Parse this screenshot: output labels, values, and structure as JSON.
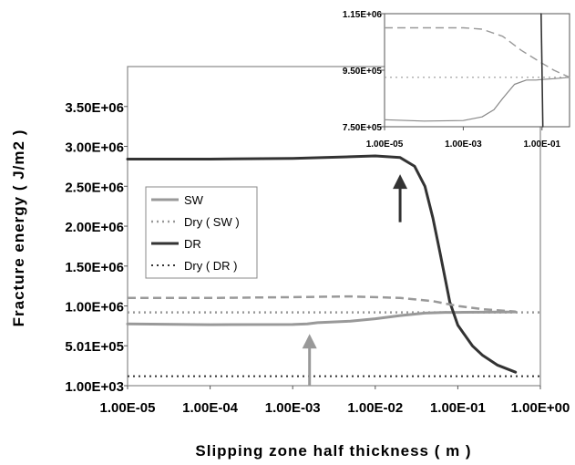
{
  "chart_data": [
    {
      "id": "main",
      "type": "line",
      "xlabel": "Slipping zone half thickness ( m )",
      "ylabel": "Fracture energy ( J/m2 )",
      "x_scale": "log",
      "xlim": [
        1e-05,
        1
      ],
      "ylim": [
        1000,
        4000000
      ],
      "x_tick_values": [
        1e-05,
        0.0001,
        0.001,
        0.01,
        0.1,
        1
      ],
      "x_tick_labels": [
        "1.00E-05",
        "1.00E-04",
        "1.00E-03",
        "1.00E-02",
        "1.00E-01",
        "1.00E+00"
      ],
      "y_tick_values": [
        1000,
        501000,
        1000000,
        1500000,
        2000000,
        2500000,
        3000000,
        3500000
      ],
      "y_tick_labels": [
        "1.00E+03",
        "5.01E+05",
        "1.00E+06",
        "1.50E+06",
        "2.00E+06",
        "2.50E+06",
        "3.00E+06",
        "3.50E+06"
      ],
      "grid": false,
      "legend_placement": "left-middle",
      "series": [
        {
          "name": "SW",
          "color": "#999999",
          "dash": "solid",
          "width": 3,
          "x": [
            1e-05,
            0.0001,
            0.001,
            0.0015,
            0.002,
            0.005,
            0.01,
            0.02,
            0.04,
            0.07,
            0.1,
            0.2,
            0.5
          ],
          "y": [
            775000,
            765000,
            768000,
            775000,
            790000,
            810000,
            840000,
            880000,
            910000,
            920000,
            920000,
            922000,
            925000
          ]
        },
        {
          "name": "Dry ( SW )",
          "color": "#999999",
          "dash": "dot",
          "width": 2.5,
          "x": [
            1e-05,
            1
          ],
          "y": [
            920000,
            920000
          ]
        },
        {
          "name": "DR",
          "color": "#333333",
          "dash": "solid",
          "width": 3,
          "x": [
            1e-05,
            0.0001,
            0.001,
            0.005,
            0.01,
            0.02,
            0.03,
            0.04,
            0.05,
            0.06,
            0.07,
            0.08,
            0.1,
            0.15,
            0.2,
            0.3,
            0.5
          ],
          "y": [
            2840000,
            2840000,
            2850000,
            2870000,
            2880000,
            2860000,
            2750000,
            2500000,
            2100000,
            1700000,
            1350000,
            1050000,
            760000,
            500000,
            380000,
            260000,
            170000
          ]
        },
        {
          "name": "Dry ( DR )",
          "color": "#333333",
          "dash": "dot",
          "width": 2,
          "x": [
            1e-05,
            1
          ],
          "y": [
            120000,
            120000
          ]
        },
        {
          "name": "",
          "color": "#999999",
          "dash": "dash",
          "width": 2.5,
          "x": [
            1e-05,
            0.0001,
            0.001,
            0.005,
            0.01,
            0.02,
            0.05,
            0.1,
            0.2,
            0.5
          ],
          "y": [
            1100000,
            1100000,
            1110000,
            1120000,
            1110000,
            1100000,
            1060000,
            1000000,
            960000,
            930000
          ]
        }
      ],
      "annotations": [
        {
          "type": "arrow",
          "color": "#333333",
          "direction": "up",
          "x": 0.02,
          "y_from": 2050000,
          "y_to": 2650000
        },
        {
          "type": "arrow",
          "color": "#999999",
          "direction": "up",
          "x": 0.0016,
          "y_from": 1000,
          "y_to": 650000
        }
      ]
    },
    {
      "id": "inset",
      "type": "line",
      "xlabel": "",
      "ylabel": "",
      "x_scale": "log",
      "xlim": [
        1e-05,
        0.5
      ],
      "ylim": [
        750000,
        1150000
      ],
      "x_tick_values": [
        1e-05,
        0.001,
        0.1
      ],
      "x_tick_labels": [
        "1.00E-05",
        "1.00E-03",
        "1.00E-01"
      ],
      "y_tick_values": [
        750000,
        950000,
        1150000
      ],
      "y_tick_labels": [
        "7.50E+05",
        "9.50E+05",
        "1.15E+06"
      ],
      "grid": false,
      "series": [
        {
          "name": "",
          "color": "#888888",
          "dash": "solid",
          "width": 1.2,
          "x": [
            1e-05,
            0.0001,
            0.001,
            0.003,
            0.006,
            0.01,
            0.02,
            0.04,
            0.07,
            0.1,
            0.2,
            0.5
          ],
          "y": [
            775000,
            770000,
            772000,
            785000,
            810000,
            850000,
            900000,
            915000,
            915000,
            917000,
            920000,
            925000
          ]
        },
        {
          "name": "",
          "color": "#999999",
          "dash": "dot",
          "width": 1.2,
          "x": [
            1e-05,
            0.5
          ],
          "y": [
            925000,
            925000
          ]
        },
        {
          "name": "",
          "color": "#999999",
          "dash": "dash",
          "width": 1.4,
          "x": [
            1e-05,
            0.0001,
            0.001,
            0.003,
            0.01,
            0.03,
            0.1,
            0.2,
            0.5
          ],
          "y": [
            1100000,
            1100000,
            1100000,
            1095000,
            1070000,
            1020000,
            975000,
            950000,
            925000
          ]
        },
        {
          "name": "",
          "color": "#333333",
          "dash": "solid",
          "width": 1.6,
          "x": [
            0.095,
            0.1,
            0.105
          ],
          "y": [
            1150000,
            950000,
            750000
          ]
        }
      ]
    }
  ]
}
